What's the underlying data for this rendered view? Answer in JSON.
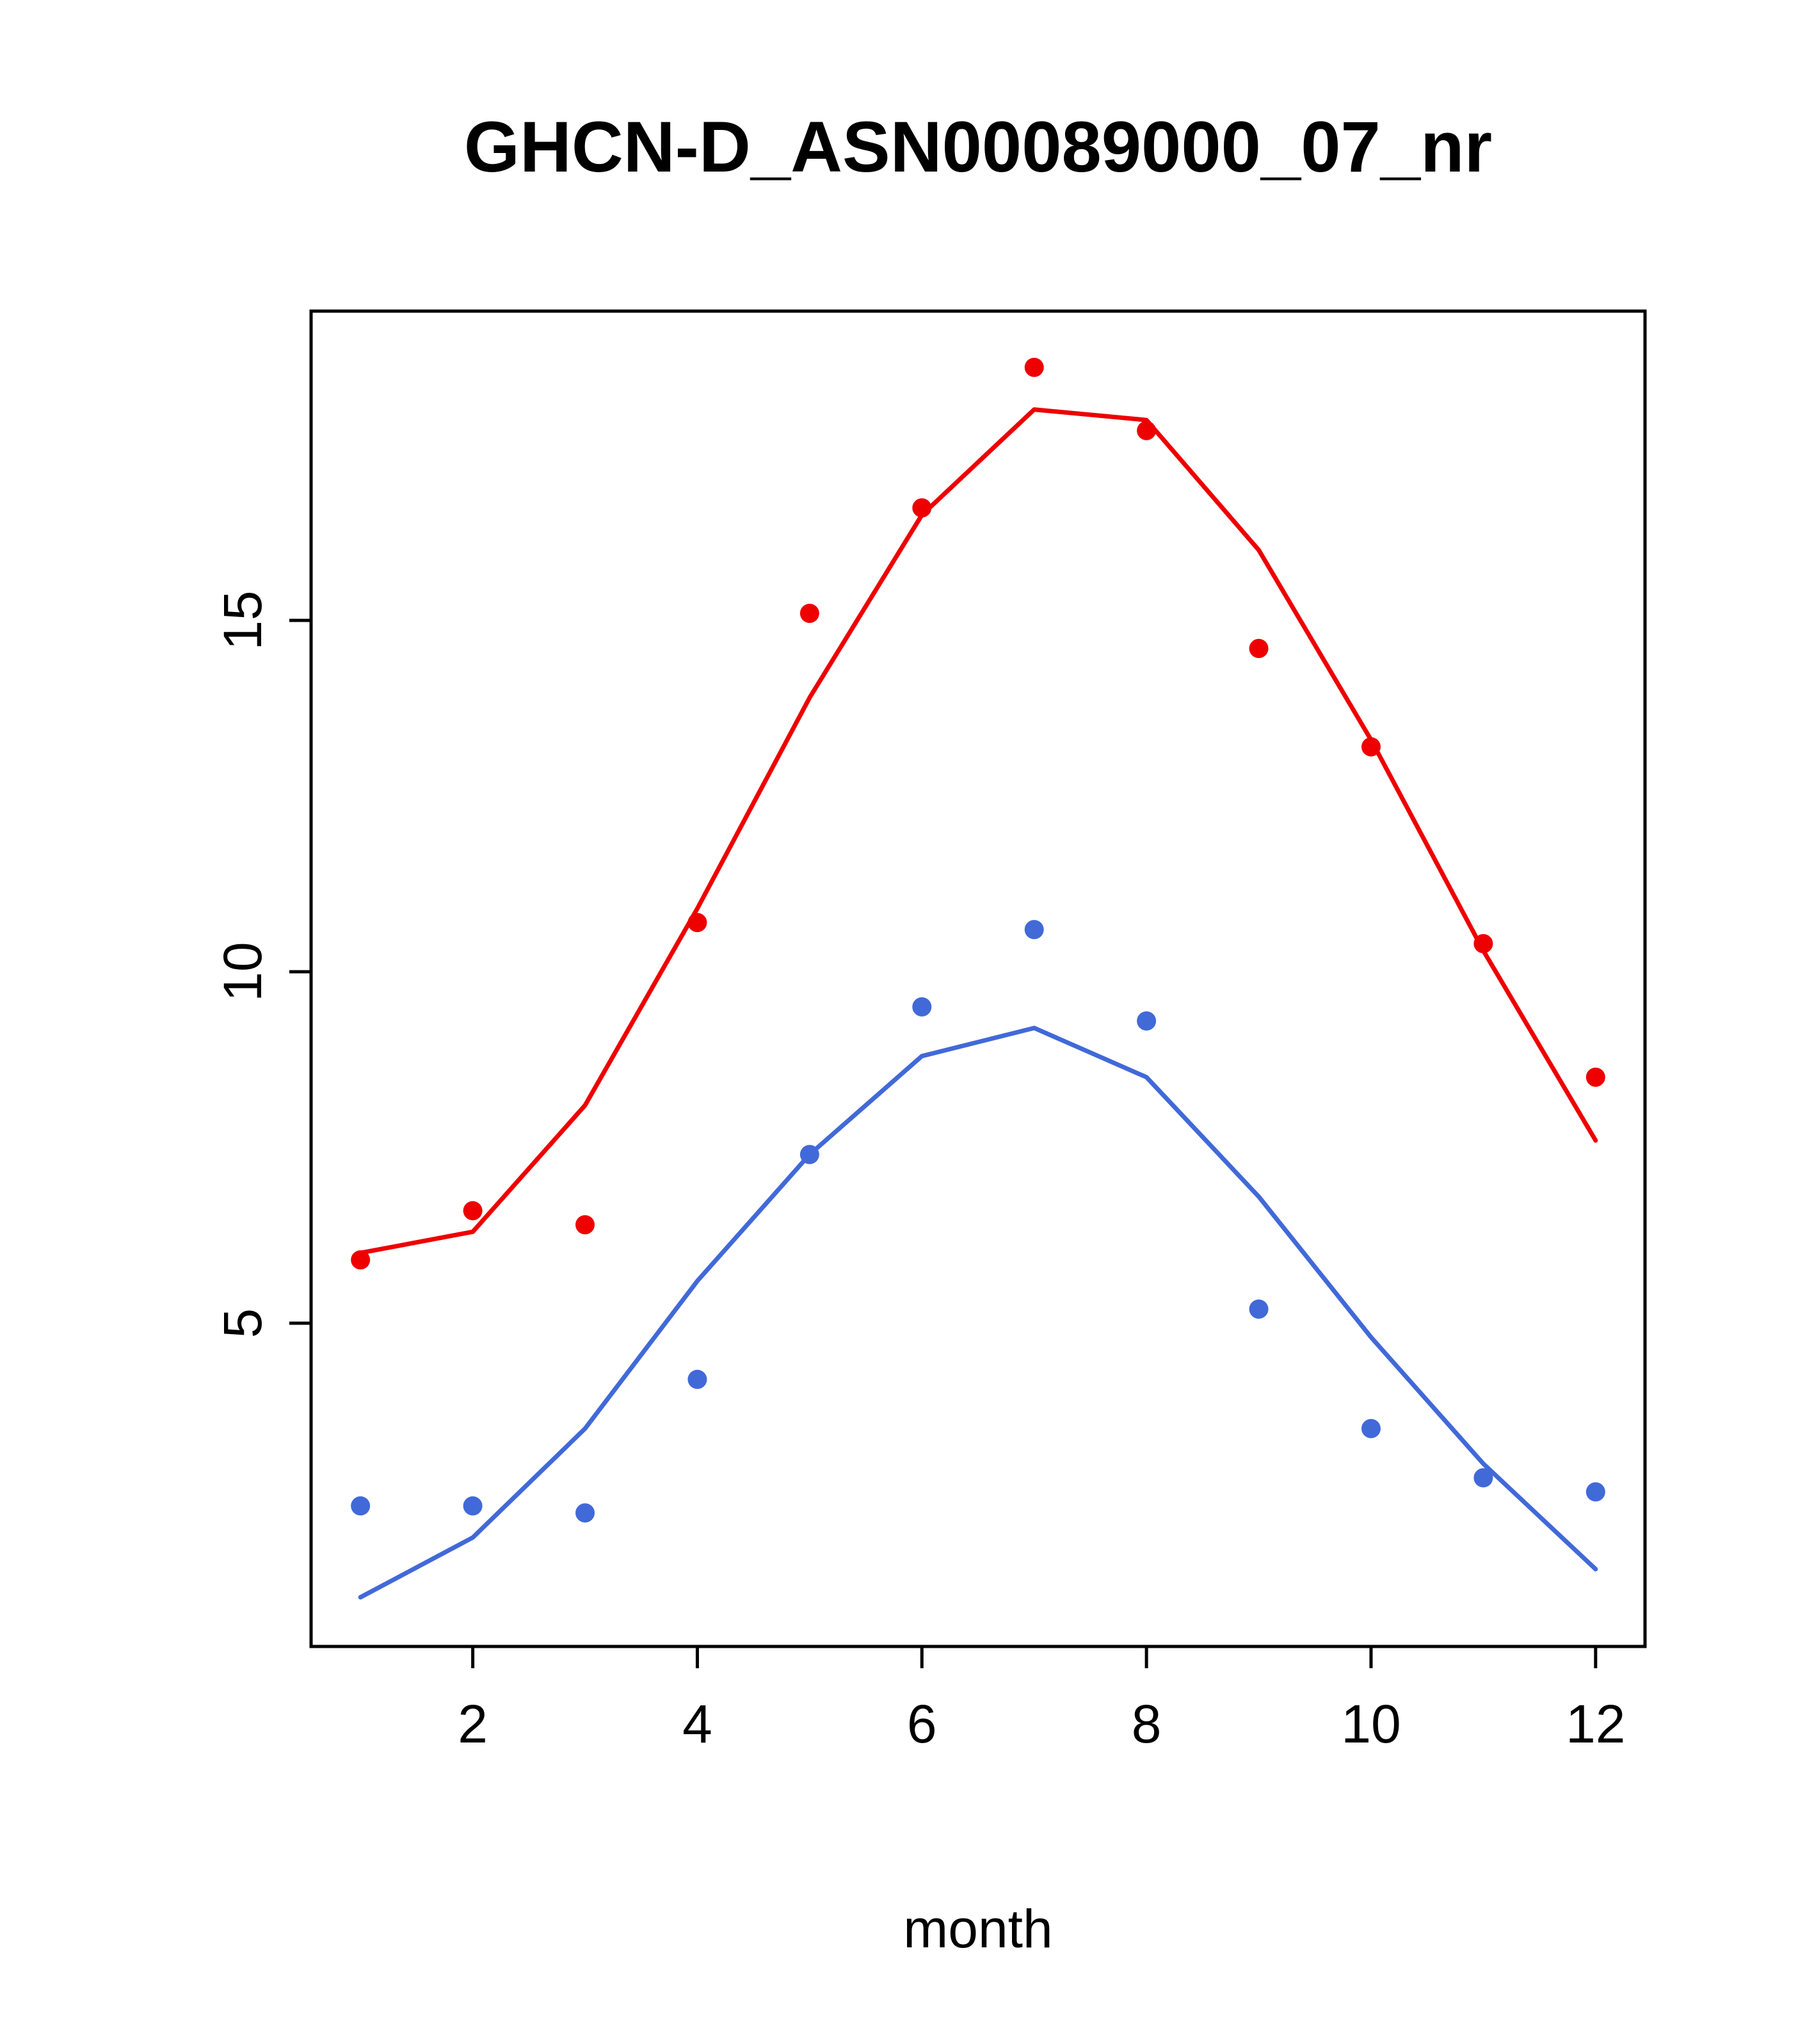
{
  "chart_data": {
    "type": "scatter",
    "title": "GHCN-D_ASN00089000_07_nr",
    "xlabel": "month",
    "ylabel": "",
    "x": [
      1,
      2,
      3,
      4,
      5,
      6,
      7,
      8,
      9,
      10,
      11,
      12
    ],
    "xticks": [
      2,
      4,
      6,
      8,
      10,
      12
    ],
    "yticks": [
      5,
      10,
      15
    ],
    "xlim": [
      0.56,
      12.44
    ],
    "ylim": [
      0.4,
      19.4
    ],
    "grid": false,
    "legend": "none",
    "series": [
      {
        "name": "red-points",
        "style": "points",
        "color": "#ee0000",
        "values": [
          5.9,
          6.6,
          6.4,
          10.7,
          15.1,
          16.6,
          18.6,
          17.7,
          14.6,
          13.2,
          10.4,
          8.5
        ]
      },
      {
        "name": "red-line",
        "style": "line",
        "color": "#ee0000",
        "values": [
          6.0,
          6.3,
          8.1,
          10.9,
          13.9,
          16.5,
          18.0,
          17.85,
          16.0,
          13.3,
          10.3,
          7.6
        ]
      },
      {
        "name": "blue-points",
        "style": "points",
        "color": "#4169d8",
        "values": [
          2.4,
          2.4,
          2.3,
          4.2,
          7.4,
          9.5,
          10.6,
          9.3,
          5.2,
          3.5,
          2.8,
          2.6
        ]
      },
      {
        "name": "blue-line",
        "style": "line",
        "color": "#4169d8",
        "values": [
          1.1,
          1.95,
          3.5,
          5.6,
          7.4,
          8.8,
          9.2,
          8.5,
          6.8,
          4.8,
          3.0,
          1.5
        ]
      }
    ],
    "layout": {
      "plot_left": 486,
      "plot_right": 2570,
      "plot_top": 486,
      "plot_bottom": 2572,
      "title_y": 268,
      "xlabel_y": 3042
    }
  }
}
